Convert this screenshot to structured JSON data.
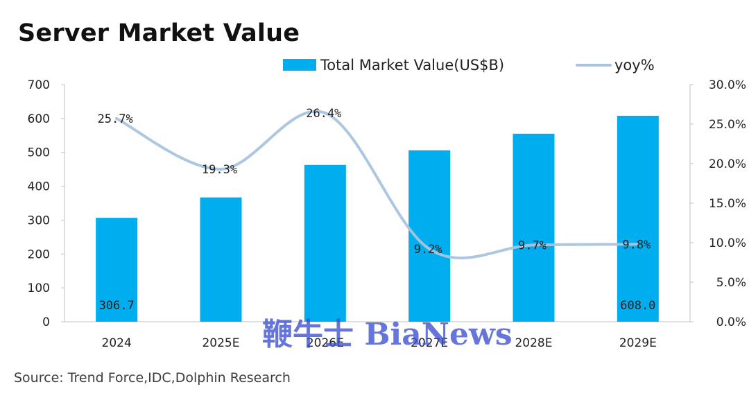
{
  "chart_data": {
    "type": "bar",
    "title": "Server Market Value",
    "categories": [
      "2024",
      "2025E",
      "2026E",
      "2027E",
      "2028E",
      "2029E"
    ],
    "series": [
      {
        "name": "Total Market Value(US$B)",
        "type": "bar",
        "axis": "left",
        "color": "#00AEEF",
        "values": [
          306.7,
          367,
          463,
          506,
          555,
          608.0
        ],
        "data_labels": [
          "306.7",
          "",
          "",
          "",
          "",
          "608.0"
        ]
      },
      {
        "name": "yoy%",
        "type": "line",
        "axis": "right",
        "color": "#A9C4DF",
        "smooth": true,
        "values": [
          25.7,
          19.3,
          26.4,
          9.2,
          9.7,
          9.8
        ],
        "data_labels": [
          "25.7%",
          "19.3%",
          "26.4%",
          "9.2%",
          "9.7%",
          "9.8%"
        ]
      }
    ],
    "y_left": {
      "ylim": [
        0,
        700
      ],
      "ticks": [
        "0",
        "100",
        "200",
        "300",
        "400",
        "500",
        "600",
        "700"
      ]
    },
    "y_right": {
      "ylim": [
        0,
        30
      ],
      "ticks": [
        "0.0%",
        "5.0%",
        "10.0%",
        "15.0%",
        "20.0%",
        "25.0%",
        "30.0%"
      ]
    },
    "grid": false,
    "legend": "top"
  },
  "source": "Source: Trend Force,IDC,Dolphin Research",
  "watermark": "鞭牛士 BiaNews"
}
